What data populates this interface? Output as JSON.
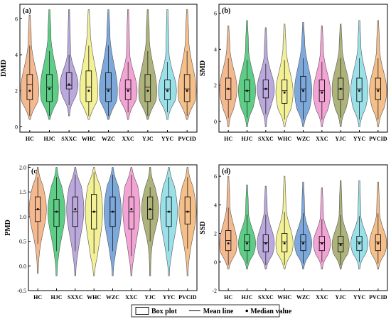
{
  "chart_data": [
    {
      "type": "violin",
      "panel_label": "(a)",
      "ylabel": "DMD",
      "ylim": [
        -0.3,
        6.8
      ],
      "yticks": [
        0,
        2,
        4,
        6
      ],
      "categories": [
        "HC",
        "HJC",
        "SXXC",
        "WHC",
        "WZC",
        "XXC",
        "YJC",
        "YYC",
        "PVCID"
      ],
      "series": [
        {
          "min": 0.4,
          "max": 6.2,
          "q1": 1.5,
          "median": 2.0,
          "q3": 2.9,
          "mean": 2.35,
          "whisker_low": 0.6,
          "whisker_high": 4.5
        },
        {
          "min": 0.4,
          "max": 6.5,
          "q1": 1.4,
          "median": 2.1,
          "q3": 2.9,
          "mean": 2.2,
          "whisker_low": 0.6,
          "whisker_high": 4.2
        },
        {
          "min": 0.6,
          "max": 6.5,
          "q1": 2.1,
          "median": 2.35,
          "q3": 3.0,
          "mean": 2.3,
          "whisker_low": 1.2,
          "whisker_high": 4.0
        },
        {
          "min": 0.4,
          "max": 6.5,
          "q1": 1.4,
          "median": 2.0,
          "q3": 3.1,
          "mean": 2.2,
          "whisker_low": 0.6,
          "whisker_high": 4.5
        },
        {
          "min": 0.4,
          "max": 6.5,
          "q1": 1.4,
          "median": 2.0,
          "q3": 3.0,
          "mean": 2.1,
          "whisker_low": 0.6,
          "whisker_high": 4.5
        },
        {
          "min": 0.4,
          "max": 6.5,
          "q1": 1.5,
          "median": 2.0,
          "q3": 2.6,
          "mean": 2.1,
          "whisker_low": 0.8,
          "whisker_high": 3.6
        },
        {
          "min": 0.4,
          "max": 6.5,
          "q1": 1.4,
          "median": 2.0,
          "q3": 2.9,
          "mean": 2.2,
          "whisker_low": 0.6,
          "whisker_high": 4.2
        },
        {
          "min": 0.4,
          "max": 6.5,
          "q1": 1.5,
          "median": 2.0,
          "q3": 2.6,
          "mean": 2.1,
          "whisker_low": 0.8,
          "whisker_high": 3.6
        },
        {
          "min": 0.4,
          "max": 6.5,
          "q1": 1.4,
          "median": 2.0,
          "q3": 2.9,
          "mean": 2.1,
          "whisker_low": 0.6,
          "whisker_high": 4.2
        }
      ]
    },
    {
      "type": "violin",
      "panel_label": "(b)",
      "ylabel": "SMD",
      "ylim": [
        -0.6,
        6.5
      ],
      "yticks": [
        0,
        2,
        4,
        6
      ],
      "categories": [
        "HC",
        "HJC",
        "SXXC",
        "WHC",
        "WZC",
        "XXC",
        "YJC",
        "YYC",
        "PVCID"
      ],
      "series": [
        {
          "min": -0.3,
          "max": 5.3,
          "q1": 1.2,
          "median": 1.8,
          "q3": 2.4,
          "mean": 1.8,
          "whisker_low": 0.2,
          "whisker_high": 3.5
        },
        {
          "min": -0.3,
          "max": 5.6,
          "q1": 1.1,
          "median": 1.7,
          "q3": 2.3,
          "mean": 1.7,
          "whisker_low": 0.2,
          "whisker_high": 3.4
        },
        {
          "min": -0.3,
          "max": 5.2,
          "q1": 1.3,
          "median": 1.8,
          "q3": 2.3,
          "mean": 1.8,
          "whisker_low": 0.4,
          "whisker_high": 3.2
        },
        {
          "min": -0.3,
          "max": 5.4,
          "q1": 1.0,
          "median": 1.6,
          "q3": 2.3,
          "mean": 1.7,
          "whisker_low": 0.1,
          "whisker_high": 3.4
        },
        {
          "min": -0.3,
          "max": 5.5,
          "q1": 1.1,
          "median": 1.7,
          "q3": 2.5,
          "mean": 1.8,
          "whisker_low": 0.1,
          "whisker_high": 3.5
        },
        {
          "min": -0.3,
          "max": 5.3,
          "q1": 1.1,
          "median": 1.6,
          "q3": 2.3,
          "mean": 1.7,
          "whisker_low": 0.1,
          "whisker_high": 3.3
        },
        {
          "min": -0.3,
          "max": 5.4,
          "q1": 1.2,
          "median": 1.8,
          "q3": 2.4,
          "mean": 1.8,
          "whisker_low": 0.2,
          "whisker_high": 3.5
        },
        {
          "min": -0.3,
          "max": 5.6,
          "q1": 1.1,
          "median": 1.7,
          "q3": 2.4,
          "mean": 1.8,
          "whisker_low": 0.1,
          "whisker_high": 3.5
        },
        {
          "min": -0.3,
          "max": 5.6,
          "q1": 1.2,
          "median": 1.7,
          "q3": 2.4,
          "mean": 1.8,
          "whisker_low": 0.1,
          "whisker_high": 3.5
        }
      ]
    },
    {
      "type": "violin",
      "panel_label": "(c)",
      "ylabel": "PMD",
      "ylim": [
        -0.5,
        2.05
      ],
      "yticks": [
        -0.5,
        0.0,
        0.5,
        1.0,
        1.5,
        2.0
      ],
      "categories": [
        "HC",
        "HJC",
        "SXXC",
        "WHC",
        "WZC",
        "XXC",
        "YJC",
        "YYC",
        "PVCID"
      ],
      "series": [
        {
          "min": -0.15,
          "max": 2.0,
          "q1": 0.9,
          "median": 1.15,
          "q3": 1.4,
          "mean": 1.15,
          "whisker_low": 0.45,
          "whisker_high": 1.8
        },
        {
          "min": -0.2,
          "max": 2.0,
          "q1": 0.8,
          "median": 1.1,
          "q3": 1.35,
          "mean": 1.1,
          "whisker_low": 0.3,
          "whisker_high": 1.8
        },
        {
          "min": -0.2,
          "max": 2.0,
          "q1": 0.8,
          "median": 1.15,
          "q3": 1.4,
          "mean": 1.1,
          "whisker_low": 0.3,
          "whisker_high": 1.85
        },
        {
          "min": -0.2,
          "max": 2.0,
          "q1": 0.75,
          "median": 1.1,
          "q3": 1.45,
          "mean": 1.1,
          "whisker_low": 0.25,
          "whisker_high": 1.9
        },
        {
          "min": -0.2,
          "max": 2.0,
          "q1": 0.8,
          "median": 1.1,
          "q3": 1.4,
          "mean": 1.1,
          "whisker_low": 0.3,
          "whisker_high": 1.85
        },
        {
          "min": -0.2,
          "max": 2.0,
          "q1": 0.75,
          "median": 1.15,
          "q3": 1.4,
          "mean": 1.1,
          "whisker_low": 0.2,
          "whisker_high": 1.85
        },
        {
          "min": -0.2,
          "max": 2.0,
          "q1": 0.95,
          "median": 1.15,
          "q3": 1.4,
          "mean": 1.15,
          "whisker_low": 0.5,
          "whisker_high": 1.6
        },
        {
          "min": -0.2,
          "max": 2.0,
          "q1": 0.8,
          "median": 1.1,
          "q3": 1.4,
          "mean": 1.1,
          "whisker_low": 0.3,
          "whisker_high": 1.8
        },
        {
          "min": -0.2,
          "max": 2.0,
          "q1": 0.85,
          "median": 1.1,
          "q3": 1.4,
          "mean": 1.1,
          "whisker_low": 0.35,
          "whisker_high": 1.8
        }
      ]
    },
    {
      "type": "violin",
      "panel_label": "(d)",
      "ylabel": "SSD",
      "ylim": [
        -2.0,
        6.8
      ],
      "yticks": [
        -2,
        0,
        2,
        4,
        6
      ],
      "categories": [
        "HC",
        "HJC",
        "SXXC",
        "WHC",
        "WZC",
        "XXC",
        "YJC",
        "YYC",
        "PVCID"
      ],
      "series": [
        {
          "min": -0.5,
          "max": 6.0,
          "q1": 0.8,
          "median": 1.3,
          "q3": 2.2,
          "mean": 1.5,
          "whisker_low": -0.2,
          "whisker_high": 3.8
        },
        {
          "min": -0.5,
          "max": 5.4,
          "q1": 0.8,
          "median": 1.3,
          "q3": 1.9,
          "mean": 1.4,
          "whisker_low": -0.1,
          "whisker_high": 3.3
        },
        {
          "min": -0.5,
          "max": 5.3,
          "q1": 0.7,
          "median": 1.3,
          "q3": 1.9,
          "mean": 1.35,
          "whisker_low": -0.2,
          "whisker_high": 3.3
        },
        {
          "min": -0.5,
          "max": 6.0,
          "q1": 0.7,
          "median": 1.3,
          "q3": 2.0,
          "mean": 1.4,
          "whisker_low": -0.2,
          "whisker_high": 3.5
        },
        {
          "min": -0.5,
          "max": 5.6,
          "q1": 0.8,
          "median": 1.3,
          "q3": 1.9,
          "mean": 1.4,
          "whisker_low": -0.1,
          "whisker_high": 3.4
        },
        {
          "min": -0.5,
          "max": 5.2,
          "q1": 0.8,
          "median": 1.3,
          "q3": 1.8,
          "mean": 1.35,
          "whisker_low": 0.0,
          "whisker_high": 3.0
        },
        {
          "min": -0.5,
          "max": 5.7,
          "q1": 0.7,
          "median": 1.2,
          "q3": 1.8,
          "mean": 1.3,
          "whisker_low": -0.2,
          "whisker_high": 3.3
        },
        {
          "min": -0.5,
          "max": 5.7,
          "q1": 0.8,
          "median": 1.3,
          "q3": 1.8,
          "mean": 1.4,
          "whisker_low": 0.0,
          "whisker_high": 3.2
        },
        {
          "min": -0.5,
          "max": 5.6,
          "q1": 0.8,
          "median": 1.3,
          "q3": 1.9,
          "mean": 1.4,
          "whisker_low": -0.1,
          "whisker_high": 3.4
        }
      ]
    }
  ],
  "colors": [
    "#f4b183",
    "#4cc97a",
    "#b49ed8",
    "#f2ee8a",
    "#6e9fd8",
    "#f29ad0",
    "#a5ab6e",
    "#8fdde6",
    "#f4b87c"
  ],
  "legend": {
    "items": [
      {
        "label": "Box plot",
        "symbol": "box"
      },
      {
        "label": "Mean line",
        "symbol": "line"
      },
      {
        "label": "Median value",
        "symbol": "dot"
      }
    ]
  }
}
